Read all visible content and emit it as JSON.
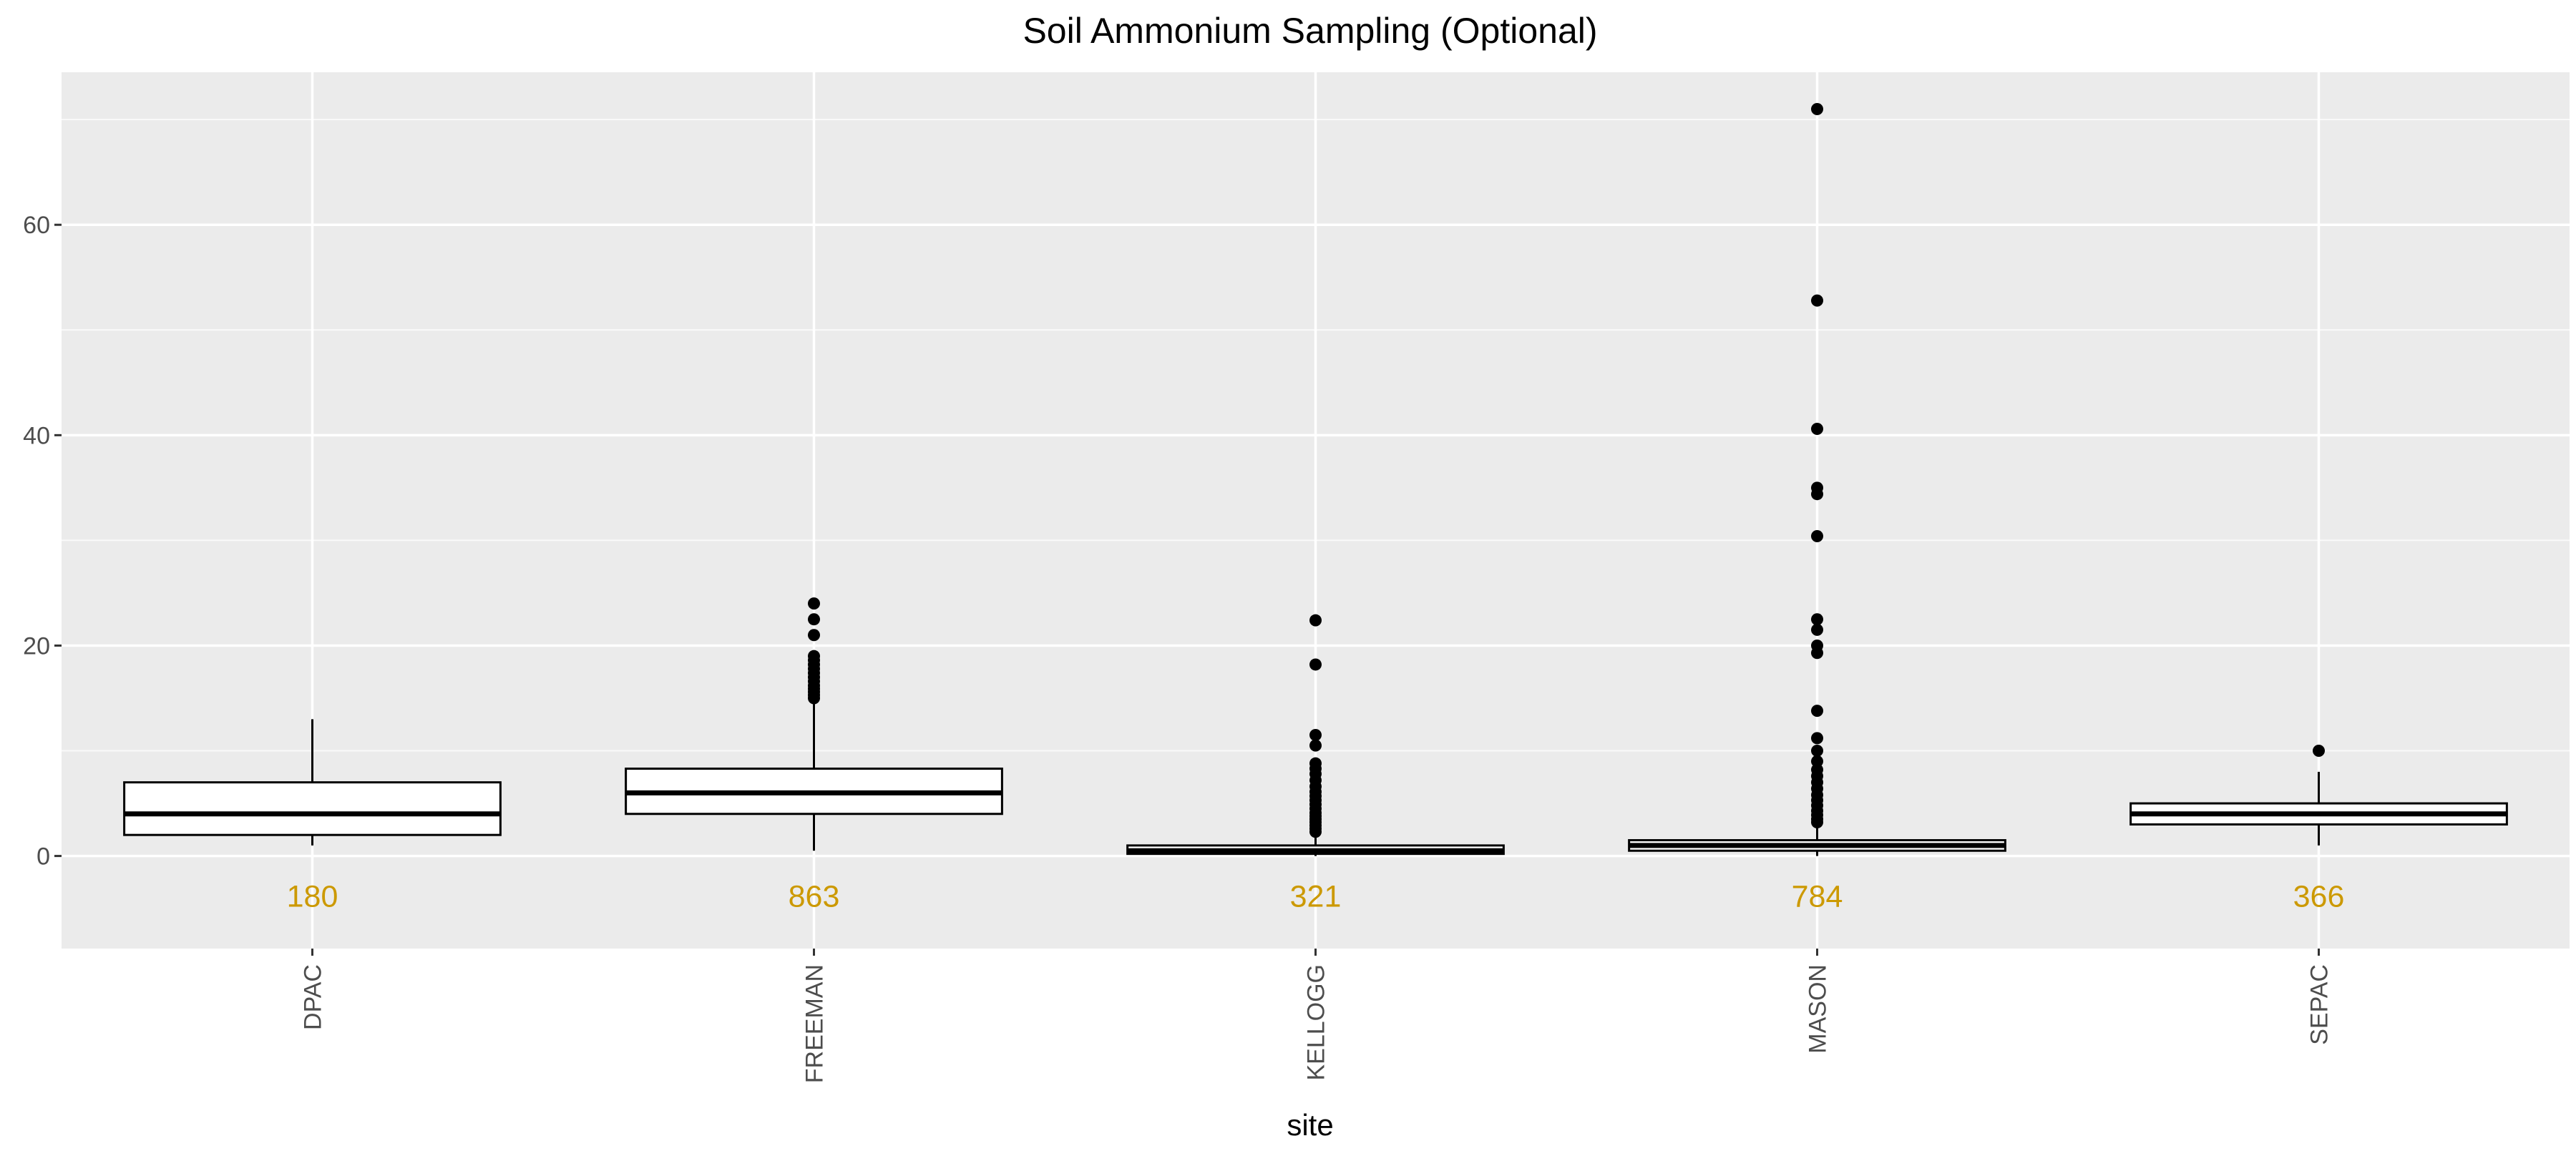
{
  "chart_data": {
    "type": "box",
    "title": "Soil Ammonium Sampling (Optional)",
    "xlabel": "site",
    "ylabel": "",
    "ylim": [
      -8.8,
      74.5
    ],
    "y_ticks": [
      0,
      20,
      40,
      60
    ],
    "y_tick_labels": [
      "0",
      "20",
      "40",
      "60"
    ],
    "grid": true,
    "legend": "none",
    "categories": [
      "DPAC",
      "FREEMAN",
      "KELLOGG",
      "MASON",
      "SEPAC"
    ],
    "boxes": [
      {
        "site": "DPAC",
        "whisker_low": 1.0,
        "q1": 2.0,
        "median": 4.0,
        "q3": 7.0,
        "whisker_high": 13.0,
        "outliers": [],
        "count": "180"
      },
      {
        "site": "FREEMAN",
        "whisker_low": 0.5,
        "q1": 4.0,
        "median": 6.0,
        "q3": 8.3,
        "whisker_high": 14.6,
        "outliers": [
          15.0,
          15.3,
          15.6,
          15.9,
          16.2,
          16.6,
          17.0,
          17.4,
          17.8,
          18.2,
          18.6,
          19.0,
          21.0,
          22.5,
          24.0
        ],
        "count": "863"
      },
      {
        "site": "KELLOGG",
        "whisker_low": 0.0,
        "q1": 0.2,
        "median": 0.5,
        "q3": 1.0,
        "whisker_high": 2.1,
        "outliers": [
          2.3,
          2.6,
          2.9,
          3.2,
          3.5,
          3.8,
          4.1,
          4.5,
          4.9,
          5.3,
          5.7,
          6.1,
          6.6,
          7.2,
          7.8,
          8.3,
          8.8,
          10.5,
          11.5,
          18.2,
          22.4
        ],
        "count": "321"
      },
      {
        "site": "MASON",
        "whisker_low": 0.0,
        "q1": 0.5,
        "median": 1.0,
        "q3": 1.5,
        "whisker_high": 3.0,
        "outliers": [
          3.2,
          3.5,
          3.9,
          4.3,
          4.8,
          5.3,
          5.8,
          6.4,
          7.0,
          7.6,
          8.2,
          9.0,
          10.0,
          11.2,
          13.8,
          19.3,
          20.0,
          21.5,
          22.5,
          30.4,
          34.4,
          35.0,
          40.6,
          52.8,
          71.0
        ],
        "count": "784"
      },
      {
        "site": "SEPAC",
        "whisker_low": 1.0,
        "q1": 3.0,
        "median": 4.0,
        "q3": 5.0,
        "whisker_high": 8.0,
        "outliers": [
          10.0
        ],
        "count": "366"
      }
    ],
    "count_label_y": -3.8
  },
  "colors": {
    "panel_background": "#ebebeb",
    "grid_major": "#ffffff",
    "box_fill": "#ffffff",
    "box_stroke": "#000000",
    "outlier": "#000000",
    "count_label": "#cc9900",
    "tick_label": "#4d4d4d",
    "tick_mark": "#333333"
  }
}
